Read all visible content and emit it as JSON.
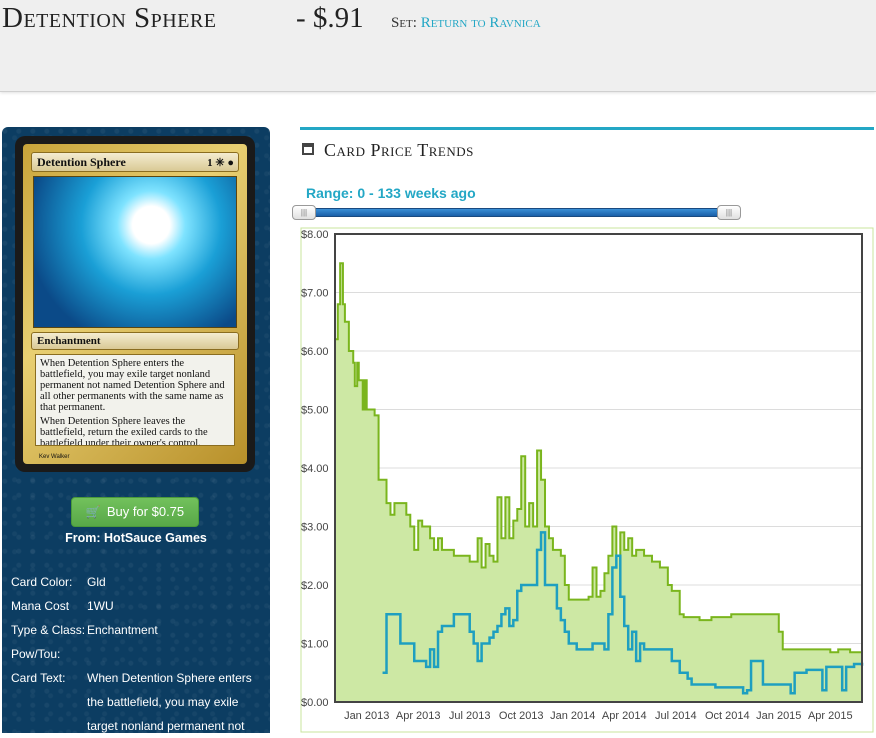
{
  "header": {
    "card_name": "Detention Sphere",
    "price": "- $.91",
    "set_label": "Set:",
    "set_name": "Return to Ravnica"
  },
  "card_image": {
    "name": "Detention Sphere",
    "mana": "1 ✳ ●",
    "type_line": "Enchantment",
    "text_1": "When Detention Sphere enters the battlefield, you may exile target nonland permanent not named Detention Sphere and all other permanents with the same name as that permanent.",
    "text_2": "When Detention Sphere leaves the battlefield, return the exiled cards to the battlefield under their owner's control.",
    "artist": "Kev Walker"
  },
  "buy": {
    "label": "Buy for $0.75",
    "from": "From: HotSauce Games",
    "icon": "cart-icon"
  },
  "details": [
    {
      "label": "Card Color:",
      "value": "Gld"
    },
    {
      "label": "Mana Cost",
      "value": "1WU"
    },
    {
      "label": "Type & Class:",
      "value": "Enchantment"
    },
    {
      "label": "Pow/Tou:",
      "value": ""
    },
    {
      "label": "Card Text:",
      "value": "When Detention Sphere enters the battlefield, you may exile target nonland permanent not"
    }
  ],
  "trends": {
    "title": "Card Price Trends",
    "range": "Range: 0 - 133 weeks ago",
    "icon": "calendar-icon"
  },
  "colors": {
    "accent": "#23a7c5",
    "series_a": "#7ab51d",
    "series_a_fill": "#cde8a4",
    "series_b": "#1e9fc0",
    "sidebar": "#0c3d62",
    "button": "#5cb85c"
  },
  "chart_data": {
    "type": "area",
    "y_ticks": [
      "$0.00",
      "$1.00",
      "$2.00",
      "$3.00",
      "$4.00",
      "$5.00",
      "$6.00",
      "$7.00",
      "$8.00"
    ],
    "ylim": [
      0,
      8
    ],
    "x_ticks": [
      "Jan 2013",
      "Apr 2013",
      "Jul 2013",
      "Oct 2013",
      "Jan 2014",
      "Apr 2014",
      "Jul 2014",
      "Oct 2014",
      "Jan 2015",
      "Apr 2015"
    ],
    "x_tick_weeks": [
      8,
      21,
      34,
      47,
      60,
      73,
      86,
      99,
      112,
      125
    ],
    "xlim": [
      0,
      133
    ],
    "series": [
      {
        "points": [
          [
            0,
            6.2
          ],
          [
            0.7,
            6.8
          ],
          [
            1.3,
            7.5
          ],
          [
            2,
            6.8
          ],
          [
            2.5,
            6.5
          ],
          [
            3,
            6.5
          ],
          [
            3.5,
            6.0
          ],
          [
            4.2,
            6.0
          ],
          [
            4.6,
            5.8
          ],
          [
            5,
            5.4
          ],
          [
            5.6,
            5.8
          ],
          [
            6,
            5.5
          ],
          [
            6.5,
            5.5
          ],
          [
            7,
            5.0
          ],
          [
            7.5,
            5.5
          ],
          [
            8,
            5.0
          ],
          [
            9,
            5.0
          ],
          [
            10,
            4.9
          ],
          [
            11,
            3.8
          ],
          [
            12,
            3.8
          ],
          [
            13,
            3.4
          ],
          [
            14,
            3.2
          ],
          [
            15,
            3.4
          ],
          [
            17,
            3.4
          ],
          [
            18,
            3.2
          ],
          [
            19,
            3.0
          ],
          [
            20,
            2.6
          ],
          [
            21,
            3.1
          ],
          [
            22,
            3.0
          ],
          [
            24,
            2.8
          ],
          [
            25,
            2.6
          ],
          [
            26,
            2.8
          ],
          [
            27,
            2.6
          ],
          [
            29,
            2.6
          ],
          [
            30,
            2.5
          ],
          [
            32,
            2.5
          ],
          [
            34,
            2.4
          ],
          [
            36,
            2.8
          ],
          [
            37,
            2.3
          ],
          [
            38,
            2.7
          ],
          [
            39,
            2.5
          ],
          [
            40,
            2.4
          ],
          [
            41,
            3.5
          ],
          [
            42,
            2.8
          ],
          [
            43,
            3.5
          ],
          [
            44,
            2.8
          ],
          [
            45,
            3.1
          ],
          [
            46,
            3.3
          ],
          [
            47,
            4.2
          ],
          [
            48,
            3.0
          ],
          [
            49,
            3.4
          ],
          [
            50,
            3.0
          ],
          [
            51,
            4.3
          ],
          [
            52,
            3.8
          ],
          [
            53,
            3.0
          ],
          [
            54,
            2.8
          ],
          [
            55,
            2.6
          ],
          [
            56,
            2.6
          ],
          [
            57,
            2.5
          ],
          [
            58,
            2.0
          ],
          [
            59,
            1.75
          ],
          [
            61,
            1.75
          ],
          [
            63,
            1.75
          ],
          [
            64,
            1.8
          ],
          [
            65,
            2.3
          ],
          [
            66,
            1.8
          ],
          [
            67,
            1.9
          ],
          [
            68,
            2.2
          ],
          [
            69,
            2.5
          ],
          [
            70,
            3.0
          ],
          [
            71,
            2.5
          ],
          [
            72,
            2.9
          ],
          [
            73,
            2.6
          ],
          [
            74,
            2.8
          ],
          [
            75,
            2.5
          ],
          [
            76,
            2.6
          ],
          [
            78,
            2.5
          ],
          [
            80,
            2.4
          ],
          [
            82,
            2.3
          ],
          [
            84,
            2.0
          ],
          [
            85,
            1.9
          ],
          [
            86,
            1.9
          ],
          [
            87,
            1.5
          ],
          [
            88,
            1.45
          ],
          [
            92,
            1.4
          ],
          [
            95,
            1.45
          ],
          [
            98,
            1.45
          ],
          [
            100,
            1.5
          ],
          [
            104,
            1.5
          ],
          [
            108,
            1.5
          ],
          [
            111,
            1.5
          ],
          [
            112,
            1.2
          ],
          [
            113,
            0.9
          ],
          [
            117,
            0.9
          ],
          [
            121,
            0.9
          ],
          [
            125,
            0.85
          ],
          [
            127,
            0.9
          ],
          [
            130,
            0.85
          ],
          [
            133,
            0.91
          ]
        ]
      },
      {
        "points": [
          [
            12,
            0.5
          ],
          [
            13,
            1.5
          ],
          [
            16,
            1.5
          ],
          [
            16.5,
            1.0
          ],
          [
            19,
            1.0
          ],
          [
            20,
            0.7
          ],
          [
            22,
            0.7
          ],
          [
            23,
            0.6
          ],
          [
            24,
            0.9
          ],
          [
            25,
            0.6
          ],
          [
            26,
            1.2
          ],
          [
            27,
            1.3
          ],
          [
            29,
            1.3
          ],
          [
            30,
            1.5
          ],
          [
            33,
            1.5
          ],
          [
            34,
            1.2
          ],
          [
            35,
            1.0
          ],
          [
            36,
            0.7
          ],
          [
            37,
            1.0
          ],
          [
            38,
            1.0
          ],
          [
            39,
            1.1
          ],
          [
            40,
            1.2
          ],
          [
            41,
            1.3
          ],
          [
            42,
            1.5
          ],
          [
            43,
            1.6
          ],
          [
            44,
            1.3
          ],
          [
            45,
            1.4
          ],
          [
            46,
            1.9
          ],
          [
            47,
            2.0
          ],
          [
            49,
            2.0
          ],
          [
            50,
            2.0
          ],
          [
            51,
            2.6
          ],
          [
            52,
            2.9
          ],
          [
            53,
            2.0
          ],
          [
            55,
            2.0
          ],
          [
            56,
            1.6
          ],
          [
            57,
            1.4
          ],
          [
            58,
            1.2
          ],
          [
            59,
            1.0
          ],
          [
            61,
            0.9
          ],
          [
            63,
            0.9
          ],
          [
            65,
            1.0
          ],
          [
            67,
            1.0
          ],
          [
            68,
            0.9
          ],
          [
            69,
            1.5
          ],
          [
            70,
            2.3
          ],
          [
            71,
            2.5
          ],
          [
            72,
            1.8
          ],
          [
            73,
            1.3
          ],
          [
            74,
            0.9
          ],
          [
            75,
            1.2
          ],
          [
            76,
            0.7
          ],
          [
            77,
            1.0
          ],
          [
            78,
            0.9
          ],
          [
            79,
            0.9
          ],
          [
            82,
            0.9
          ],
          [
            84,
            0.9
          ],
          [
            85,
            0.7
          ],
          [
            87,
            0.5
          ],
          [
            89,
            0.4
          ],
          [
            90,
            0.3
          ],
          [
            93,
            0.3
          ],
          [
            96,
            0.25
          ],
          [
            99,
            0.25
          ],
          [
            102,
            0.25
          ],
          [
            103,
            0.15
          ],
          [
            104,
            0.2
          ],
          [
            105,
            0.7
          ],
          [
            108,
            0.3
          ],
          [
            111,
            0.3
          ],
          [
            114,
            0.3
          ],
          [
            115,
            0.15
          ],
          [
            116,
            0.5
          ],
          [
            119,
            0.55
          ],
          [
            122,
            0.55
          ],
          [
            123,
            0.2
          ],
          [
            124,
            0.6
          ],
          [
            127,
            0.6
          ],
          [
            128,
            0.2
          ],
          [
            129,
            0.6
          ],
          [
            131,
            0.65
          ],
          [
            133,
            0.62
          ]
        ]
      }
    ]
  }
}
